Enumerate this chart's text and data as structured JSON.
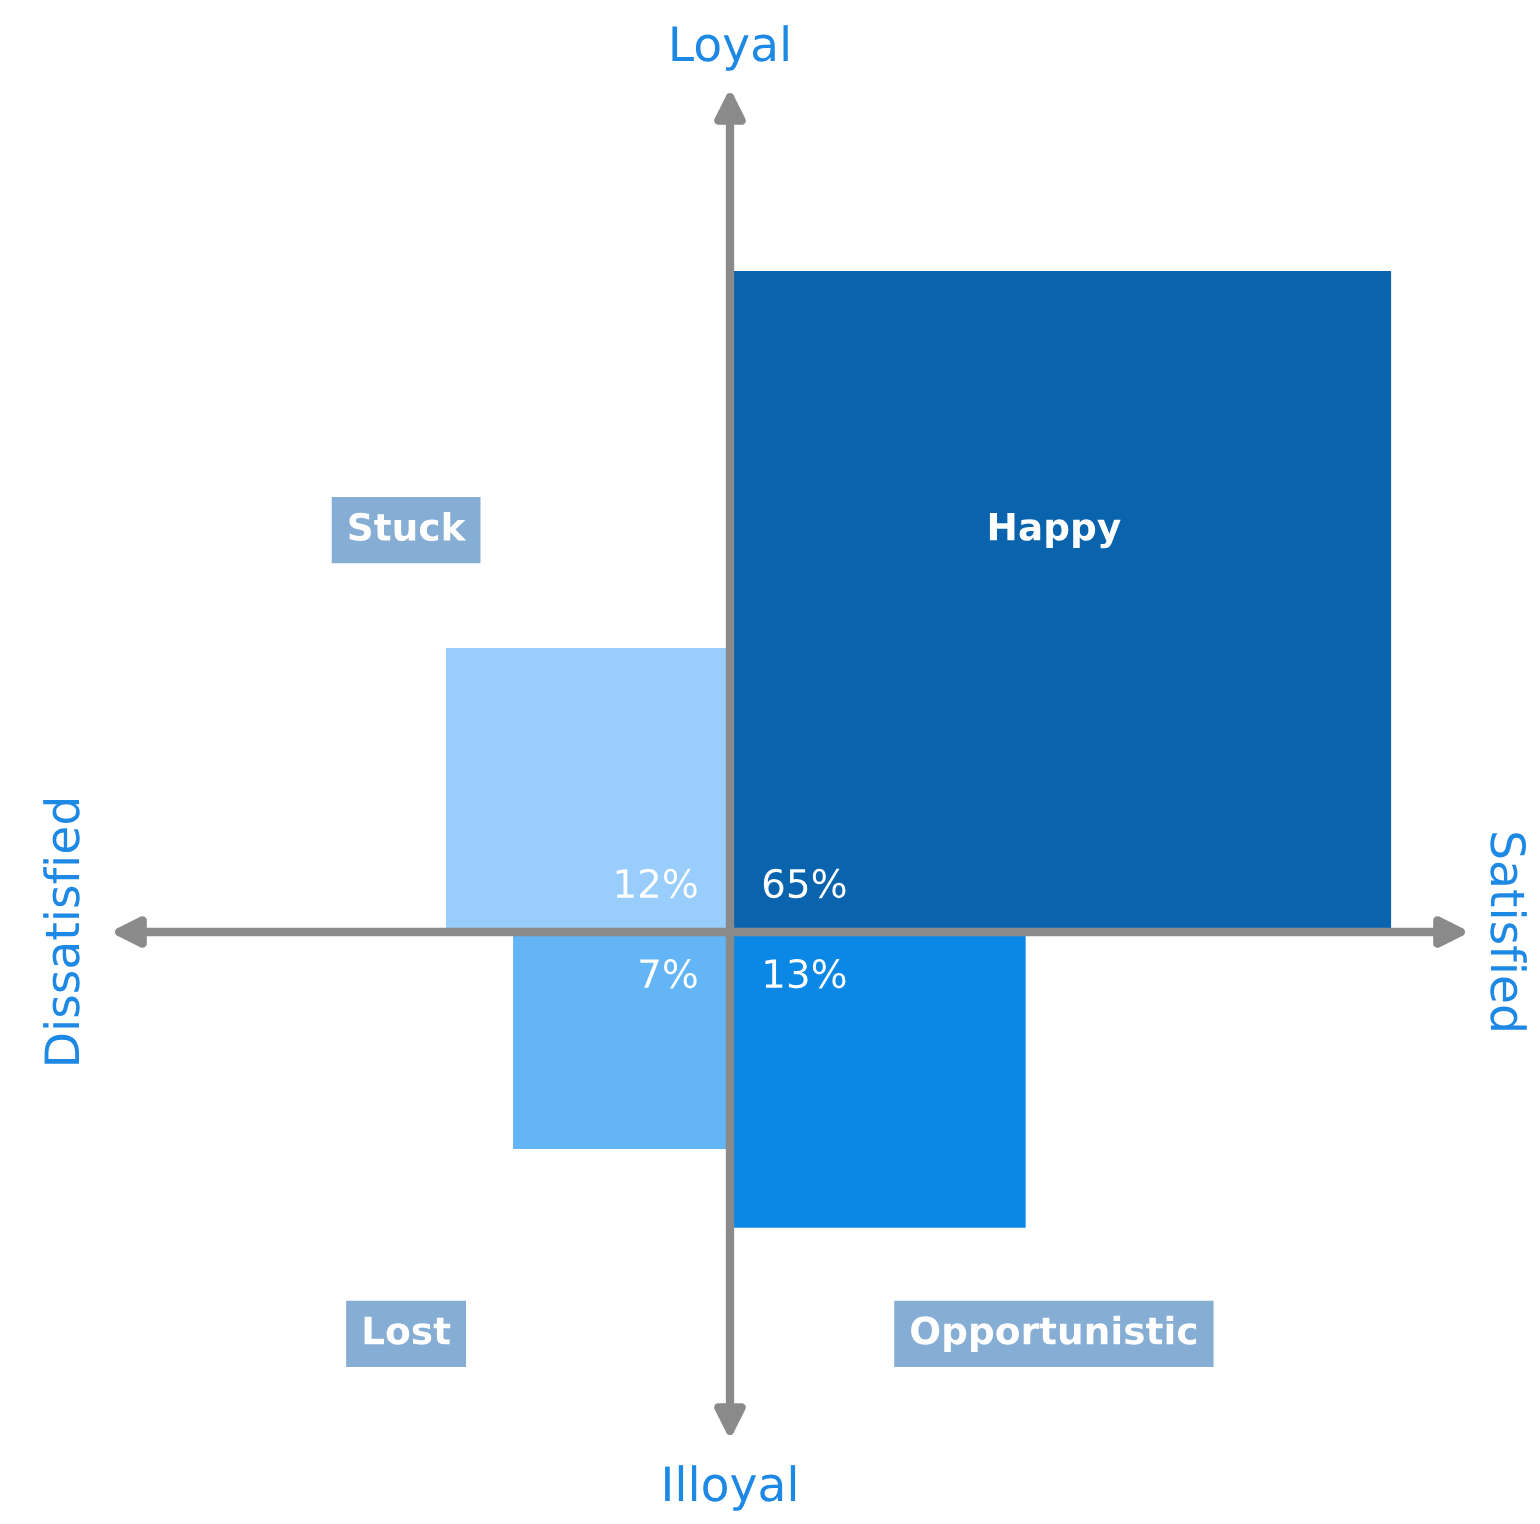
{
  "chart_data": {
    "type": "other",
    "categories": [
      "Happy",
      "Stuck",
      "Lost",
      "Opportunistic"
    ],
    "values": [
      65,
      12,
      7,
      13
    ],
    "value_labels": [
      "65%",
      "12%",
      "7%",
      "13%"
    ],
    "colors": [
      "#0a64ad",
      "#99cdfb",
      "#63b5f6",
      "#0b87e6"
    ],
    "annotations": [
      "Loyal",
      "Illoyal",
      "Dissatisfied",
      "Satisfied"
    ]
  }
}
